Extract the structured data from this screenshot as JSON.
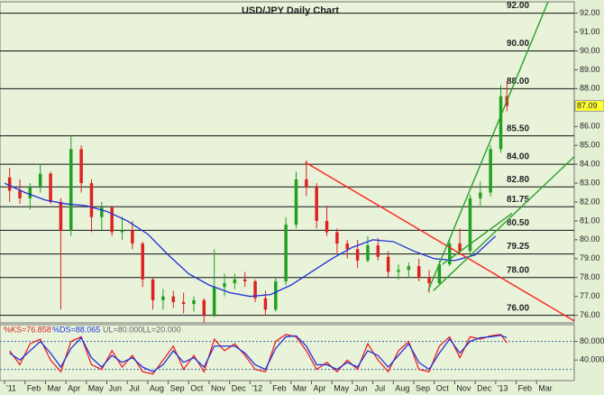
{
  "chart_data": {
    "type": "candlestick",
    "title": "USD/JPY Daily Chart",
    "xlim": [
      -0.22,
      27.84
    ],
    "xticks": [
      {
        "value": 0,
        "label": "'11"
      },
      {
        "value": 1,
        "label": "Feb"
      },
      {
        "value": 2,
        "label": "Mar"
      },
      {
        "value": 3,
        "label": "Apr"
      },
      {
        "value": 4,
        "label": "May"
      },
      {
        "value": 5,
        "label": "Jun"
      },
      {
        "value": 6,
        "label": "Jul"
      },
      {
        "value": 7,
        "label": "Aug"
      },
      {
        "value": 8,
        "label": "Sep"
      },
      {
        "value": 9,
        "label": "Oct"
      },
      {
        "value": 10,
        "label": "Nov"
      },
      {
        "value": 11,
        "label": "Dec"
      },
      {
        "value": 12,
        "label": "'12"
      },
      {
        "value": 13,
        "label": "Feb"
      },
      {
        "value": 14,
        "label": "Mar"
      },
      {
        "value": 15,
        "label": "Apr"
      },
      {
        "value": 16,
        "label": "May"
      },
      {
        "value": 17,
        "label": "Jun"
      },
      {
        "value": 18,
        "label": "Jul"
      },
      {
        "value": 19,
        "label": "Aug"
      },
      {
        "value": 20,
        "label": "Sep"
      },
      {
        "value": 21,
        "label": "Oct"
      },
      {
        "value": 22,
        "label": "Nov"
      },
      {
        "value": 23,
        "label": "Dec"
      },
      {
        "value": 24,
        "label": "'13"
      },
      {
        "value": 25,
        "label": "Feb"
      },
      {
        "value": 26,
        "label": "Mar"
      }
    ],
    "ylim": [
      75.6,
      92.6
    ],
    "yticks": [
      {
        "value": 92,
        "label": "92.00"
      },
      {
        "value": 91,
        "label": "91.00"
      },
      {
        "value": 90,
        "label": "90.00"
      },
      {
        "value": 89,
        "label": "89.00"
      },
      {
        "value": 88,
        "label": "88.00"
      },
      {
        "value": 86,
        "label": "86.00"
      },
      {
        "value": 85,
        "label": "85.00"
      },
      {
        "value": 84,
        "label": "84.00"
      },
      {
        "value": 83,
        "label": "83.00"
      },
      {
        "value": 82,
        "label": "82.00"
      },
      {
        "value": 81,
        "label": "81.00"
      },
      {
        "value": 80,
        "label": "80.00"
      },
      {
        "value": 79,
        "label": "79.00"
      },
      {
        "value": 78,
        "label": "78.00"
      },
      {
        "value": 77,
        "label": "77.00"
      },
      {
        "value": 76,
        "label": "76.00"
      }
    ],
    "up_color": "#22a022",
    "down_color": "#dd2222",
    "candles": {
      "x": [
        0.25,
        0.75,
        1.25,
        1.75,
        2.25,
        2.75,
        3.25,
        3.75,
        4.25,
        4.75,
        5.25,
        5.75,
        6.25,
        6.75,
        7.25,
        7.75,
        8.25,
        8.75,
        9.25,
        9.75,
        10.25,
        10.75,
        11.25,
        11.75,
        12.25,
        12.75,
        13.25,
        13.75,
        14.25,
        14.75,
        15.25,
        15.75,
        16.25,
        16.75,
        17.25,
        17.75,
        18.25,
        18.75,
        19.25,
        19.75,
        20.25,
        20.75,
        21.25,
        21.75,
        22.25,
        22.75,
        23.25,
        23.75,
        24.25,
        24.55
      ],
      "open": [
        83.3,
        82.6,
        82.2,
        82.8,
        83.5,
        82.0,
        80.5,
        84.8,
        83.0,
        81.2,
        81.7,
        80.4,
        80.5,
        79.8,
        77.9,
        76.8,
        77.0,
        76.7,
        76.6,
        76.8,
        76.0,
        77.5,
        77.7,
        77.9,
        77.8,
        76.9,
        76.3,
        77.8,
        80.8,
        83.2,
        82.8,
        81.0,
        80.4,
        79.8,
        79.5,
        78.9,
        79.7,
        79.1,
        78.3,
        78.4,
        78.6,
        78.0,
        77.7,
        78.7,
        79.8,
        79.4,
        82.2,
        82.5,
        84.8,
        87.6
      ],
      "high": [
        83.8,
        83.2,
        83.0,
        84.0,
        83.6,
        82.2,
        85.5,
        85.0,
        83.2,
        82.0,
        81.8,
        81.2,
        81.0,
        79.9,
        78.0,
        77.4,
        77.3,
        77.2,
        77.0,
        76.9,
        79.5,
        78.2,
        78.2,
        78.3,
        77.9,
        77.3,
        78.0,
        81.2,
        83.6,
        84.2,
        83.0,
        81.8,
        80.6,
        80.0,
        80.0,
        80.2,
        80.1,
        79.4,
        78.7,
        78.8,
        79.0,
        78.4,
        78.9,
        80.0,
        80.6,
        82.4,
        83.1,
        85.0,
        88.2,
        88.4
      ],
      "low": [
        82.0,
        81.9,
        81.6,
        82.5,
        81.9,
        76.3,
        80.2,
        82.5,
        80.4,
        80.5,
        80.2,
        80.0,
        79.5,
        77.5,
        76.3,
        76.3,
        76.4,
        76.1,
        76.2,
        75.6,
        75.9,
        77.0,
        77.4,
        77.5,
        76.7,
        76.0,
        76.2,
        77.6,
        80.6,
        82.3,
        80.6,
        80.2,
        79.3,
        79.0,
        78.5,
        78.8,
        78.9,
        78.0,
        77.9,
        78.0,
        77.8,
        77.2,
        77.6,
        78.6,
        79.2,
        79.3,
        81.8,
        82.3,
        84.6,
        86.8
      ],
      "close": [
        82.6,
        82.2,
        82.8,
        83.5,
        82.0,
        80.5,
        84.8,
        83.0,
        81.2,
        81.7,
        80.4,
        80.5,
        79.8,
        77.9,
        76.8,
        77.0,
        76.7,
        76.6,
        76.8,
        76.0,
        77.5,
        77.7,
        77.9,
        77.8,
        76.9,
        76.3,
        77.8,
        80.8,
        83.2,
        82.8,
        81.0,
        80.4,
        79.8,
        79.5,
        78.9,
        79.7,
        79.1,
        78.3,
        78.4,
        78.6,
        78.0,
        77.7,
        78.7,
        79.8,
        79.4,
        82.2,
        82.5,
        84.8,
        87.6,
        87.09
      ]
    },
    "last_label": "87.09",
    "series": [
      {
        "color": "#1f2fd8",
        "x": [
          0,
          1,
          2,
          3,
          4,
          5,
          6,
          7,
          8,
          9,
          10,
          11,
          12,
          13,
          14,
          15,
          16,
          17,
          18,
          19,
          20,
          21,
          22,
          23,
          24
        ],
        "values": [
          83.0,
          82.5,
          82.1,
          81.9,
          81.8,
          81.5,
          81.0,
          80.3,
          79.2,
          78.2,
          77.6,
          77.2,
          77.0,
          77.1,
          77.6,
          78.3,
          79.0,
          79.6,
          80.0,
          79.9,
          79.4,
          79.0,
          78.9,
          79.2,
          80.2
        ]
      }
    ],
    "trendlines": [
      {
        "color": "#ff2020",
        "x": [
          14.7,
          27.84
        ],
        "y": [
          84.1,
          75.7
        ]
      },
      {
        "color": "#2aa02a",
        "x": [
          20.7,
          26.56
        ],
        "y": [
          77.3,
          92.6
        ]
      },
      {
        "color": "#2aa02a",
        "x": [
          20.95,
          27.84
        ],
        "y": [
          77.3,
          84.4
        ]
      },
      {
        "color": "#2aa02a",
        "x": [
          21.4,
          24.8
        ],
        "y": [
          78.7,
          81.4
        ]
      }
    ],
    "levels": [
      {
        "value": 92,
        "label": "92.00"
      },
      {
        "value": 90,
        "label": "90.00"
      },
      {
        "value": 88,
        "label": "88.00"
      },
      {
        "value": 85.5,
        "label": "85.50"
      },
      {
        "value": 84,
        "label": "84.00"
      },
      {
        "value": 82.8,
        "label": "82.80"
      },
      {
        "value": 81.75,
        "label": "81.75"
      },
      {
        "value": 80.5,
        "label": "80.50"
      },
      {
        "value": 79.25,
        "label": "79.25"
      },
      {
        "value": 78,
        "label": "78.00"
      },
      {
        "value": 76,
        "label": "76.00"
      }
    ],
    "stochastic": {
      "ylim": [
        -4,
        116
      ],
      "yticks": [
        {
          "value": 80,
          "label": "80.000"
        },
        {
          "value": 40,
          "label": "40.000"
        }
      ],
      "bands": [
        80,
        20
      ],
      "k_label": "%KS=76.858",
      "d_label": "%DS=88.065",
      "ul_label": "UL=80.000",
      "ll_label": "LL=20.000",
      "series": [
        {
          "color": "#ee2222",
          "values": [
            60,
            30,
            75,
            85,
            40,
            15,
            80,
            90,
            30,
            20,
            60,
            25,
            50,
            15,
            10,
            40,
            70,
            20,
            50,
            15,
            85,
            60,
            75,
            50,
            20,
            15,
            80,
            95,
            90,
            60,
            20,
            35,
            15,
            40,
            20,
            75,
            40,
            15,
            60,
            80,
            20,
            15,
            70,
            90,
            45,
            90,
            85,
            92,
            95,
            76.858
          ]
        },
        {
          "color": "#2233dd",
          "values": [
            55,
            40,
            60,
            80,
            55,
            25,
            65,
            88,
            45,
            25,
            50,
            35,
            45,
            25,
            15,
            30,
            60,
            35,
            45,
            25,
            70,
            70,
            70,
            55,
            30,
            20,
            65,
            90,
            92,
            70,
            30,
            30,
            20,
            35,
            25,
            60,
            50,
            25,
            50,
            75,
            35,
            20,
            55,
            85,
            55,
            80,
            88,
            90,
            93,
            88.065
          ]
        }
      ]
    }
  }
}
